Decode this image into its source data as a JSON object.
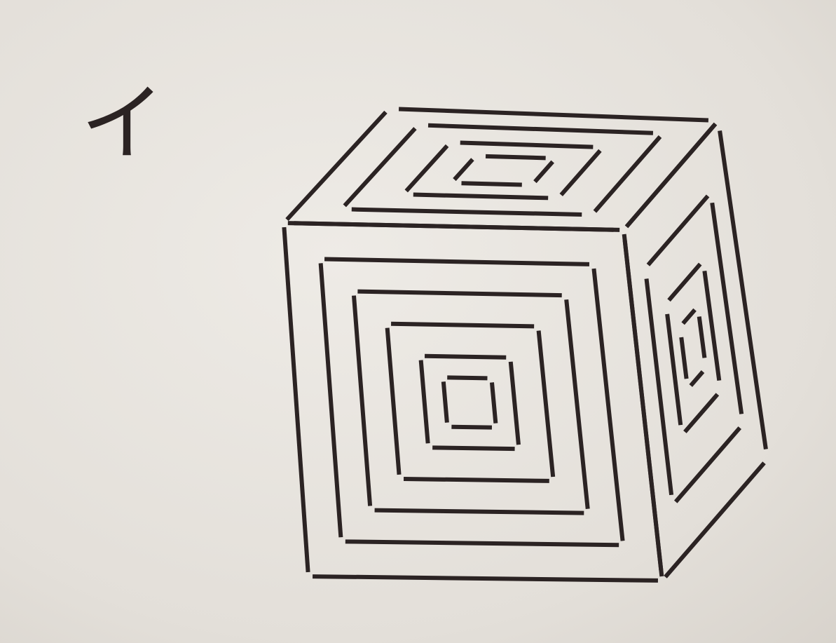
{
  "label": "イ"
}
